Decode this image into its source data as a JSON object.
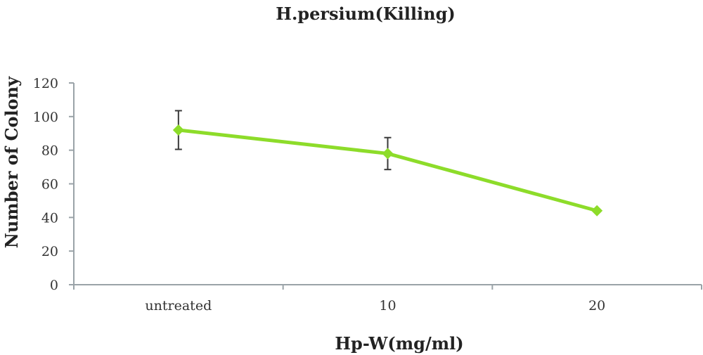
{
  "chart_data": {
    "type": "line",
    "title": "H.persium(Killing)",
    "xlabel": "Hp-W(mg/ml)",
    "ylabel": "Number of Colony",
    "categories": [
      "untreated",
      "10",
      "20"
    ],
    "series": [
      {
        "values": [
          92,
          78,
          44
        ],
        "error": [
          11.5,
          9.5,
          0
        ],
        "color": "#8ddc2a"
      }
    ],
    "ylim": [
      0,
      120
    ],
    "yticks": [
      0,
      20,
      40,
      60,
      80,
      100,
      120
    ],
    "grid": false,
    "legend": "none",
    "axis_color": "#9aa3a8",
    "error_bar_color": "#3a3a3a"
  }
}
